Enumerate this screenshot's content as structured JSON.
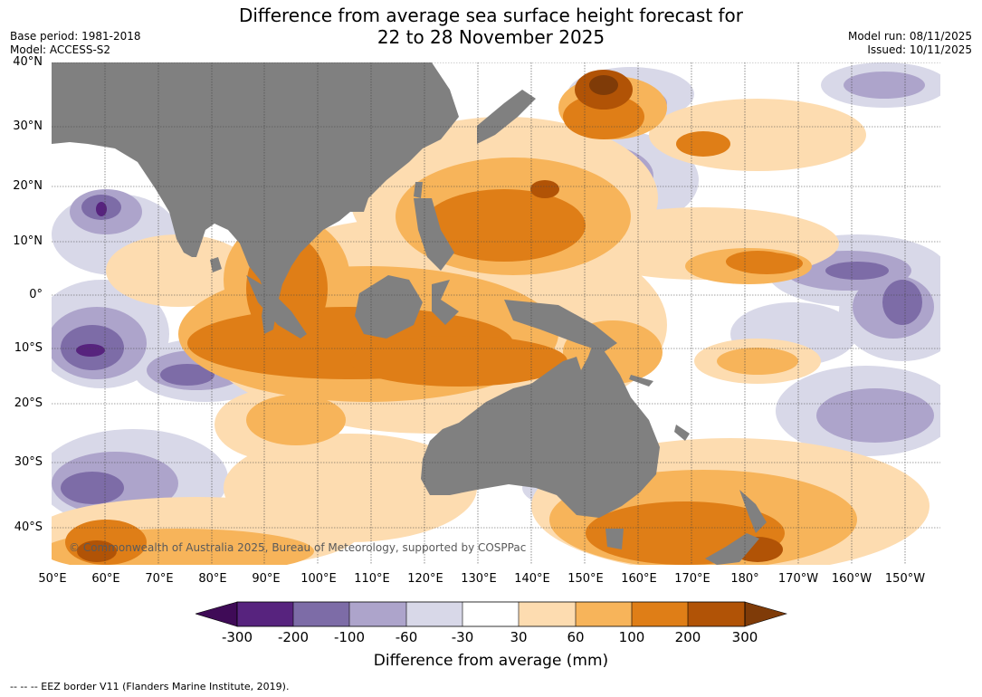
{
  "title": {
    "line1": "Difference from average sea surface height forecast for",
    "line2": "22 to 28 November 2025"
  },
  "meta": {
    "base_period": "Base period: 1981-2018",
    "model": "Model: ACCESS-S2",
    "model_run": "Model run: 08/11/2025",
    "issued": "Issued: 10/11/2025"
  },
  "lat_labels": [
    "40°N",
    "30°N",
    "20°N",
    "10°N",
    "0°",
    "10°S",
    "20°S",
    "30°S",
    "40°S"
  ],
  "lon_labels": [
    "50°E",
    "60°E",
    "70°E",
    "80°E",
    "90°E",
    "100°E",
    "110°E",
    "120°E",
    "130°E",
    "140°E",
    "150°E",
    "160°E",
    "170°E",
    "180°",
    "170°W",
    "160°W",
    "150°W"
  ],
  "copyright": "© Commonwealth of Australia 2025, Bureau of Meteorology, supported by COSPPac",
  "colorbar": {
    "ticks": [
      "-300",
      "-200",
      "-100",
      "-60",
      "-30",
      "30",
      "60",
      "100",
      "200",
      "300"
    ],
    "colors": [
      "#3f0b57",
      "#57237e",
      "#7d6ca7",
      "#ada4cb",
      "#d8d8e8",
      "#ffffff",
      "#fddcb0",
      "#f7b45a",
      "#df7e17",
      "#b15306",
      "#7f3b08"
    ],
    "label": "Difference from average (mm)"
  },
  "colors": {
    "land": "#808080",
    "grid": "#444444"
  },
  "footer": "--  --  -- EEZ border V11 (Flanders Marine Institute, 2019)."
}
